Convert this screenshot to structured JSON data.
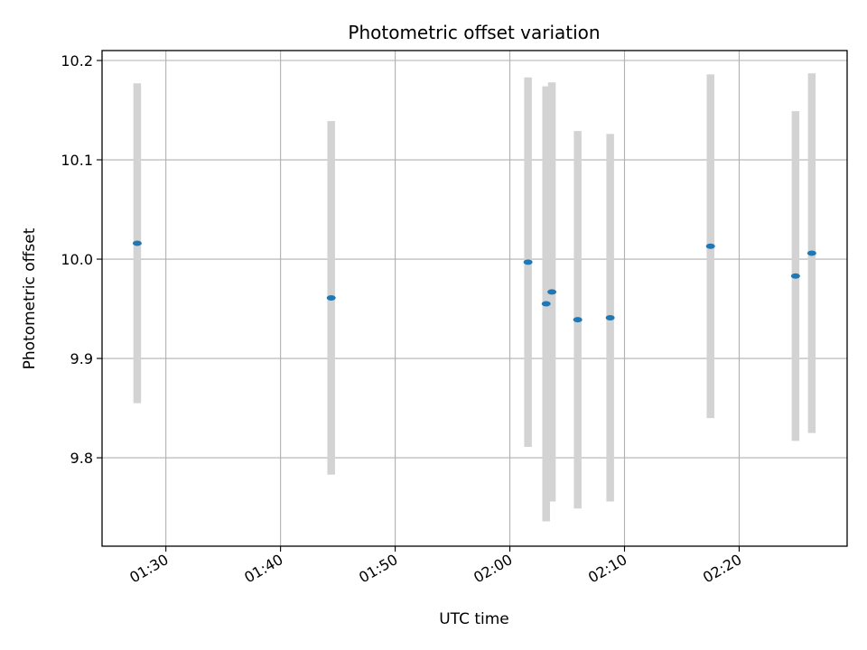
{
  "chart_data": {
    "type": "scatter",
    "title": "Photometric offset variation",
    "xlabel": "UTC time",
    "ylabel": "Photometric offset",
    "x_ticks": [
      "01:30",
      "01:40",
      "01:50",
      "02:00",
      "02:10",
      "02:20"
    ],
    "y_ticks": [
      "9.8",
      "9.9",
      "10.0",
      "10.1",
      "10.2"
    ],
    "xlim": [
      "01:24:26",
      "02:29:25"
    ],
    "ylim": [
      9.711,
      10.21
    ],
    "grid": true,
    "colors": {
      "marker": "#1f77b4",
      "errorbar": "#d3d3d3",
      "grid": "#b0b0b0"
    },
    "points": [
      {
        "x": "01:27:30",
        "y": 10.016,
        "yerr": 0.161
      },
      {
        "x": "01:44:25",
        "y": 9.961,
        "yerr": 0.178
      },
      {
        "x": "02:01:35",
        "y": 9.997,
        "yerr": 0.186
      },
      {
        "x": "02:03:10",
        "y": 9.955,
        "yerr": 0.219
      },
      {
        "x": "02:03:40",
        "y": 9.967,
        "yerr": 0.211
      },
      {
        "x": "02:05:55",
        "y": 9.939,
        "yerr": 0.19
      },
      {
        "x": "02:08:45",
        "y": 9.941,
        "yerr": 0.185
      },
      {
        "x": "02:17:30",
        "y": 10.013,
        "yerr": 0.173
      },
      {
        "x": "02:24:55",
        "y": 9.983,
        "yerr": 0.166
      },
      {
        "x": "02:26:20",
        "y": 10.006,
        "yerr": 0.181
      }
    ]
  }
}
